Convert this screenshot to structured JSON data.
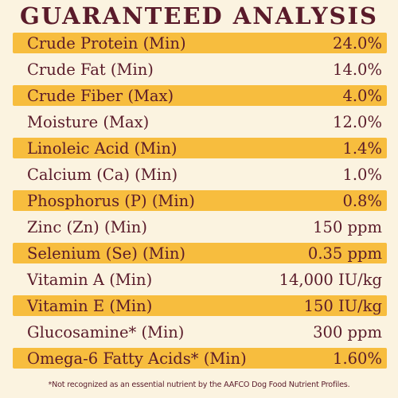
{
  "title": "GUARANTEED ANALYSIS",
  "rows": [
    {
      "label": "Crude Protein (Min)",
      "value": "24.0%"
    },
    {
      "label": "Crude Fat (Min)",
      "value": "14.0%"
    },
    {
      "label": "Crude Fiber (Max)",
      "value": "4.0%"
    },
    {
      "label": "Moisture (Max)",
      "value": "12.0%"
    },
    {
      "label": "Linoleic Acid (Min)",
      "value": "1.4%"
    },
    {
      "label": "Calcium (Ca) (Min)",
      "value": "1.0%"
    },
    {
      "label": "Phosphorus (P) (Min)",
      "value": "0.8%"
    },
    {
      "label": "Zinc (Zn) (Min)",
      "value": "150 ppm"
    },
    {
      "label": "Selenium (Se) (Min)",
      "value": "0.35 ppm"
    },
    {
      "label": "Vitamin A (Min)",
      "value": "14,000 IU/kg"
    },
    {
      "label": "Vitamin E (Min)",
      "value": "150 IU/kg"
    },
    {
      "label": "Glucosamine* (Min)",
      "value": "300 ppm"
    },
    {
      "label": "Omega-6 Fatty Acids* (Min)",
      "value": "1.60%"
    }
  ],
  "footnote": "*Not recognized as an essential nutrient by the AAFCO Dog Food Nutrient Profiles.",
  "colors": {
    "text": "#5a1b2a",
    "band": "#f7bd3e",
    "background": "#fbf3e0"
  }
}
